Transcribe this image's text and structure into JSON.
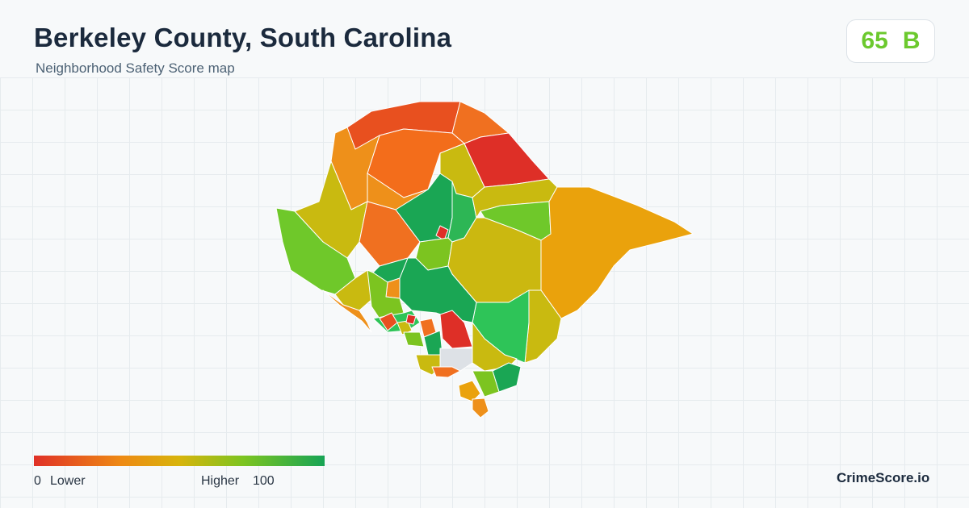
{
  "header": {
    "title": "Berkeley County, South Carolina",
    "subtitle": "Neighborhood Safety Score map"
  },
  "score": {
    "value": "65",
    "grade": "B",
    "color": "#6cc92e"
  },
  "legend": {
    "min": "0",
    "min_label": "Lower",
    "max_label": "Higher",
    "max": "100",
    "colors": [
      "#e03127",
      "#ee8a14",
      "#d8b40c",
      "#7cc420",
      "#17a455"
    ]
  },
  "brand": "CrimeScore.io"
}
